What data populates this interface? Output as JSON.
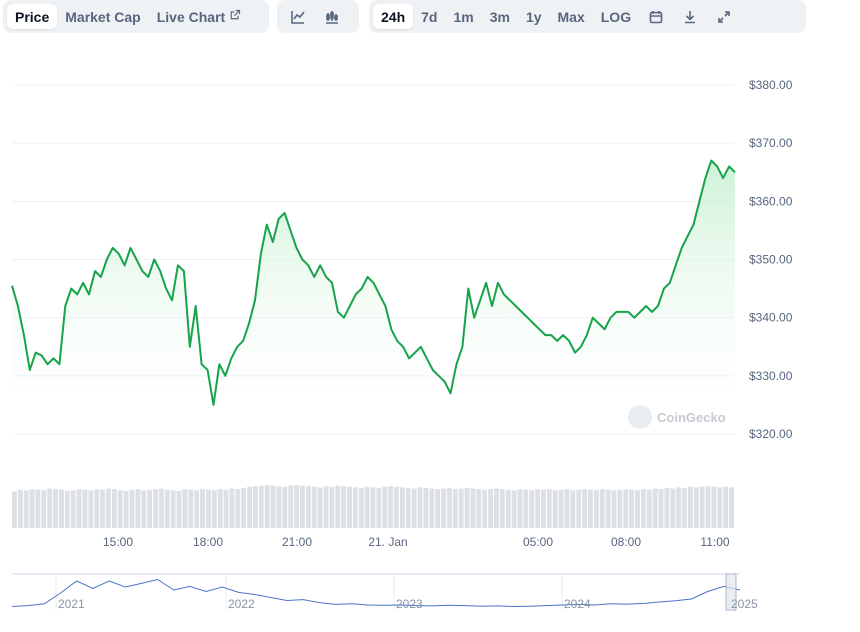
{
  "toolbar": {
    "metric_tabs": [
      "Price",
      "Market Cap",
      "Live Chart"
    ],
    "active_metric": "Price",
    "chart_types": [
      {
        "name": "line-chart-icon",
        "active": true
      },
      {
        "name": "candlestick-chart-icon",
        "active": false
      }
    ],
    "ranges": [
      "24h",
      "7d",
      "1m",
      "3m",
      "1y",
      "Max",
      "LOG"
    ],
    "active_range": "24h",
    "actions": [
      "calendar-icon",
      "download-icon",
      "expand-icon"
    ]
  },
  "watermark": "CoinGecko",
  "colors": {
    "line": "#16a34a",
    "fill_top": "#c7f0d2",
    "grid": "#eef0f3",
    "volume": "#dde1e6",
    "navigator_line": "#4a74c9"
  },
  "chart_data": {
    "type": "area",
    "title": "",
    "xlabel": "",
    "ylabel": "",
    "y_axis_side": "right",
    "y_ticks": [
      "$320.00",
      "$330.00",
      "$340.00",
      "$350.00",
      "$360.00",
      "$370.00",
      "$380.00"
    ],
    "ylim": [
      320,
      380
    ],
    "x_ticks": [
      "15:00",
      "18:00",
      "21:00",
      "21. Jan",
      "05:00",
      "08:00",
      "11:00"
    ],
    "grid": true,
    "series": [
      {
        "values": [
          345.5,
          342,
          337,
          331,
          334,
          333.5,
          332,
          333,
          332,
          342,
          345,
          344,
          346,
          344,
          348,
          347,
          350,
          352,
          351,
          349,
          352,
          350,
          348,
          347,
          350,
          348,
          345,
          343,
          349,
          348,
          335,
          342,
          332,
          331,
          325,
          332,
          330,
          333,
          335,
          336,
          339,
          343,
          351,
          356,
          353,
          357,
          358,
          355,
          352,
          350,
          349,
          347,
          349,
          347,
          346,
          341,
          340,
          342,
          344,
          345,
          347,
          346,
          344,
          342,
          338,
          336,
          335,
          333,
          334,
          335,
          333,
          331,
          330,
          329,
          327,
          332,
          335,
          345,
          340,
          343,
          346,
          342,
          346,
          344,
          343,
          342,
          341,
          340,
          339,
          338,
          337,
          337,
          336,
          337,
          336,
          334,
          335,
          337,
          340,
          339,
          338,
          340,
          341,
          341,
          341,
          340,
          341,
          342,
          341,
          342,
          345,
          346,
          349,
          352,
          354,
          356,
          360,
          364,
          367,
          366,
          364,
          366,
          365
        ]
      }
    ],
    "volume": {
      "values": [
        62,
        65,
        64,
        66,
        65,
        64,
        67,
        66,
        65,
        63,
        64,
        66,
        65,
        64,
        66,
        65,
        67,
        66,
        64,
        63,
        65,
        66,
        64,
        65,
        66,
        67,
        65,
        64,
        63,
        66,
        65,
        64,
        66,
        65,
        64,
        66,
        65,
        67,
        66,
        68,
        70,
        71,
        72,
        73,
        72,
        71,
        70,
        72,
        73,
        72,
        71,
        70,
        69,
        71,
        70,
        72,
        71,
        70,
        69,
        68,
        70,
        69,
        68,
        70,
        71,
        70,
        69,
        68,
        67,
        69,
        68,
        67,
        66,
        67,
        68,
        66,
        67,
        68,
        67,
        66,
        65,
        66,
        67,
        66,
        65,
        64,
        66,
        65,
        64,
        66,
        65,
        66,
        64,
        65,
        66,
        64,
        65,
        66,
        65,
        64,
        66,
        65,
        64,
        65,
        66,
        65,
        64,
        66,
        65,
        67,
        66,
        68,
        67,
        69,
        68,
        70,
        69,
        70,
        71,
        70,
        69,
        70,
        69
      ]
    },
    "navigator": {
      "x_ticks": [
        "2021",
        "2022",
        "2023",
        "2024",
        "2025"
      ],
      "values": [
        0.05,
        0.08,
        0.14,
        0.5,
        0.9,
        0.65,
        0.9,
        0.7,
        0.82,
        0.95,
        0.6,
        0.72,
        0.55,
        0.7,
        0.52,
        0.45,
        0.35,
        0.25,
        0.28,
        0.18,
        0.12,
        0.14,
        0.1,
        0.09,
        0.1,
        0.08,
        0.07,
        0.09,
        0.08,
        0.06,
        0.07,
        0.05,
        0.06,
        0.08,
        0.1,
        0.12,
        0.1,
        0.14,
        0.13,
        0.15,
        0.2,
        0.24,
        0.3,
        0.55,
        0.72,
        0.6
      ]
    }
  }
}
